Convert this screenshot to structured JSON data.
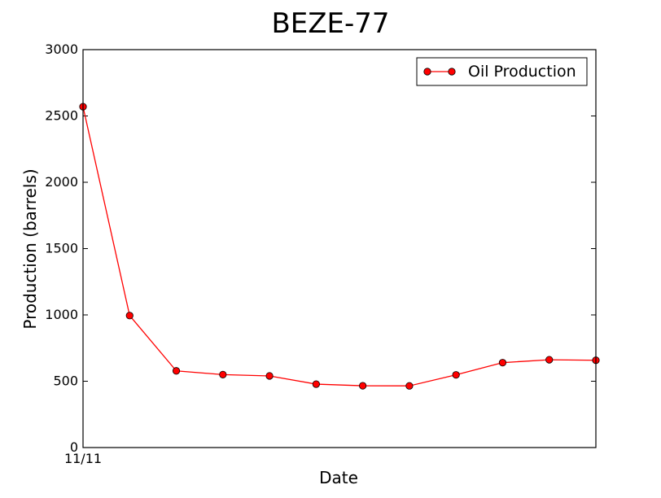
{
  "chart_data": {
    "type": "line",
    "title": "BEZE-77",
    "xlabel": "Date",
    "ylabel": "Production (barrels)",
    "x_tick_labels": [
      "11/11"
    ],
    "y_ticks": [
      0,
      500,
      1000,
      1500,
      2000,
      2500,
      3000
    ],
    "ylim": [
      0,
      3000
    ],
    "grid": false,
    "legend_position": "top-right",
    "series": [
      {
        "name": "Oil Production",
        "color": "#ff0000",
        "marker": "circle",
        "values": [
          2570,
          995,
          578,
          550,
          540,
          478,
          466,
          465,
          548,
          640,
          662,
          658
        ]
      }
    ]
  }
}
